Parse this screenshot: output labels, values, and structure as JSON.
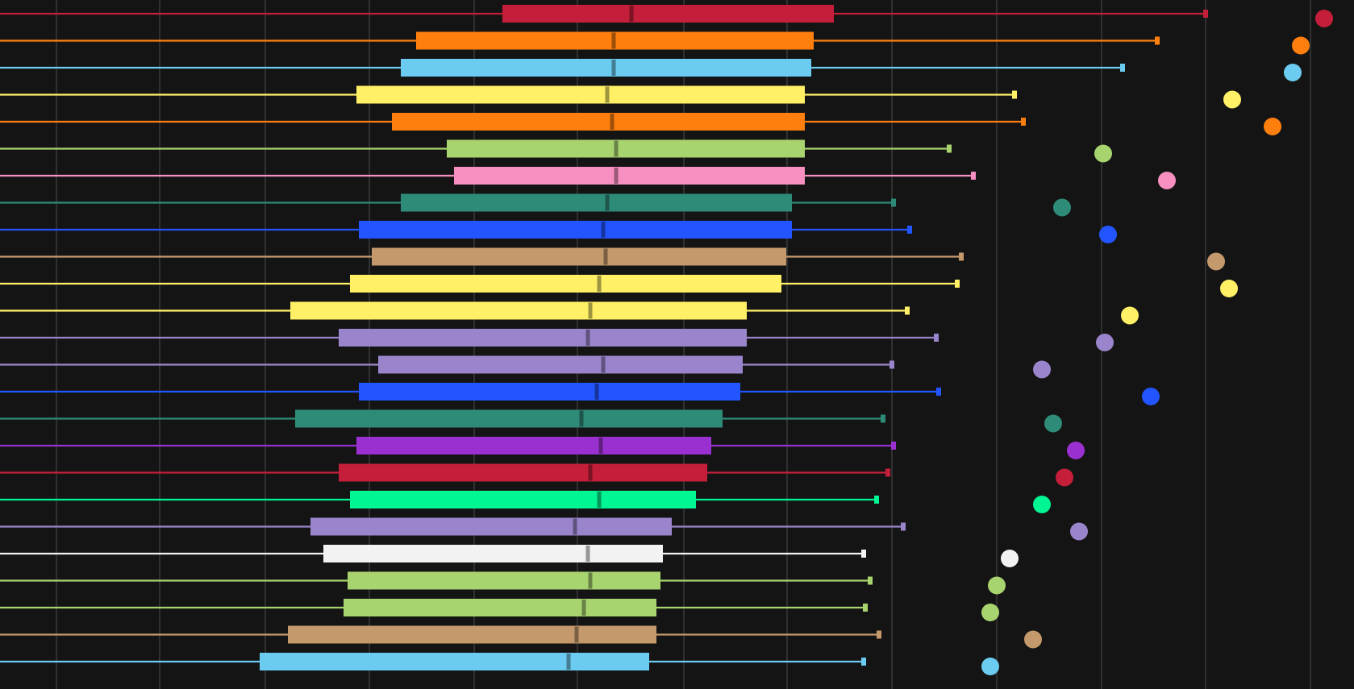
{
  "chart_data": {
    "type": "box",
    "orientation": "horizontal",
    "background": "#141414",
    "grid": true,
    "xlim": [
      0,
      1679
    ],
    "whisker_cap": true,
    "series": [
      {
        "color": "#c41e3a",
        "q1": 623,
        "median": 783,
        "q3": 1034,
        "whisker_high": 1495,
        "outlier": 1642
      },
      {
        "color": "#ff7f0e",
        "q1": 516,
        "median": 761,
        "q3": 1009,
        "whisker_high": 1435,
        "outlier": 1613
      },
      {
        "color": "#6ccbf0",
        "q1": 497,
        "median": 761,
        "q3": 1006,
        "whisker_high": 1392,
        "outlier": 1603
      },
      {
        "color": "#fff066",
        "q1": 442,
        "median": 753,
        "q3": 998,
        "whisker_high": 1258,
        "outlier": 1528
      },
      {
        "color": "#ff7f0e",
        "q1": 486,
        "median": 759,
        "q3": 998,
        "whisker_high": 1269,
        "outlier": 1578
      },
      {
        "color": "#a8d46f",
        "q1": 554,
        "median": 764,
        "q3": 998,
        "whisker_high": 1177,
        "outlier": 1368
      },
      {
        "color": "#f78fc0",
        "q1": 563,
        "median": 764,
        "q3": 998,
        "whisker_high": 1207,
        "outlier": 1447
      },
      {
        "color": "#2e8b77",
        "q1": 497,
        "median": 753,
        "q3": 982,
        "whisker_high": 1108,
        "outlier": 1317
      },
      {
        "color": "#2255ff",
        "q1": 445,
        "median": 748,
        "q3": 982,
        "whisker_high": 1128,
        "outlier": 1374
      },
      {
        "color": "#c49a6c",
        "q1": 461,
        "median": 751,
        "q3": 975,
        "whisker_high": 1192,
        "outlier": 1508
      },
      {
        "color": "#fff066",
        "q1": 434,
        "median": 743,
        "q3": 969,
        "whisker_high": 1187,
        "outlier": 1524
      },
      {
        "color": "#fff066",
        "q1": 360,
        "median": 732,
        "q3": 926,
        "whisker_high": 1125,
        "outlier": 1401
      },
      {
        "color": "#9a85cc",
        "q1": 420,
        "median": 729,
        "q3": 926,
        "whisker_high": 1161,
        "outlier": 1370
      },
      {
        "color": "#9a85cc",
        "q1": 469,
        "median": 748,
        "q3": 921,
        "whisker_high": 1106,
        "outlier": 1292
      },
      {
        "color": "#2255ff",
        "q1": 445,
        "median": 740,
        "q3": 918,
        "whisker_high": 1164,
        "outlier": 1427
      },
      {
        "color": "#2e8b77",
        "q1": 366,
        "median": 721,
        "q3": 896,
        "whisker_high": 1095,
        "outlier": 1306
      },
      {
        "color": "#9b30d0",
        "q1": 442,
        "median": 745,
        "q3": 882,
        "whisker_high": 1108,
        "outlier": 1334
      },
      {
        "color": "#c41e3a",
        "q1": 420,
        "median": 732,
        "q3": 877,
        "whisker_high": 1101,
        "outlier": 1320
      },
      {
        "color": "#00f593",
        "q1": 434,
        "median": 743,
        "q3": 863,
        "whisker_high": 1087,
        "outlier": 1292
      },
      {
        "color": "#9a85cc",
        "q1": 385,
        "median": 713,
        "q3": 833,
        "whisker_high": 1120,
        "outlier": 1338
      },
      {
        "color": "#f2f2f2",
        "q1": 401,
        "median": 729,
        "q3": 822,
        "whisker_high": 1071,
        "outlier": 1252
      },
      {
        "color": "#a8d46f",
        "q1": 431,
        "median": 732,
        "q3": 819,
        "whisker_high": 1079,
        "outlier": 1236
      },
      {
        "color": "#a8d46f",
        "q1": 426,
        "median": 724,
        "q3": 814,
        "whisker_high": 1073,
        "outlier": 1228
      },
      {
        "color": "#c49a6c",
        "q1": 357,
        "median": 715,
        "q3": 814,
        "whisker_high": 1090,
        "outlier": 1281
      },
      {
        "color": "#6ccbf0",
        "q1": 322,
        "median": 705,
        "q3": 805,
        "whisker_high": 1071,
        "outlier": 1228
      }
    ],
    "gridlines_x": [
      70,
      198,
      329,
      458,
      588,
      716,
      848,
      976,
      1106,
      1236,
      1366,
      1495,
      1625
    ]
  }
}
